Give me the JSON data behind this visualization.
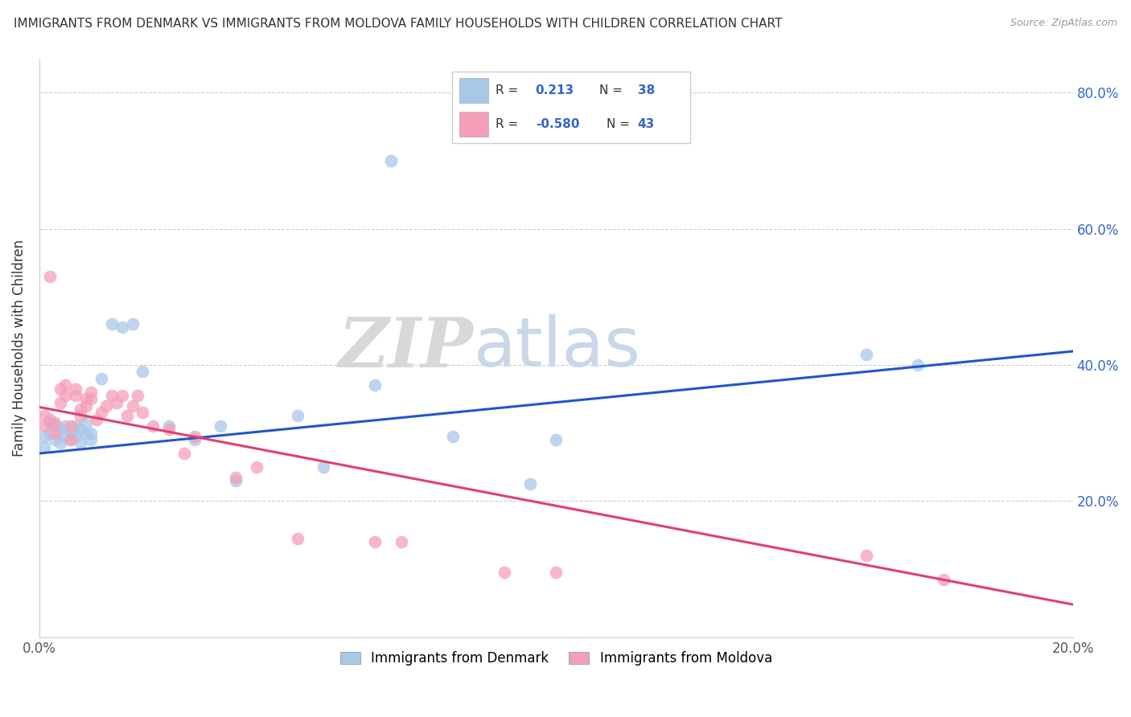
{
  "title": "IMMIGRANTS FROM DENMARK VS IMMIGRANTS FROM MOLDOVA FAMILY HOUSEHOLDS WITH CHILDREN CORRELATION CHART",
  "source": "Source: ZipAtlas.com",
  "ylabel": "Family Households with Children",
  "xlim": [
    0.0,
    0.2
  ],
  "ylim": [
    0.0,
    0.85
  ],
  "legend1_R": "0.213",
  "legend1_N": "38",
  "legend2_R": "-0.580",
  "legend2_N": "43",
  "denmark_color": "#a8c8e8",
  "moldova_color": "#f4a0b8",
  "denmark_line_color": "#2255cc",
  "moldova_line_color": "#e04070",
  "denmark_scatter_x": [
    0.001,
    0.001,
    0.002,
    0.002,
    0.003,
    0.003,
    0.004,
    0.004,
    0.005,
    0.005,
    0.006,
    0.006,
    0.007,
    0.007,
    0.008,
    0.008,
    0.009,
    0.009,
    0.01,
    0.01,
    0.012,
    0.014,
    0.016,
    0.018,
    0.02,
    0.025,
    0.03,
    0.035,
    0.038,
    0.05,
    0.055,
    0.065,
    0.068,
    0.08,
    0.095,
    0.1,
    0.16,
    0.17
  ],
  "denmark_scatter_y": [
    0.28,
    0.295,
    0.3,
    0.315,
    0.29,
    0.31,
    0.285,
    0.305,
    0.295,
    0.31,
    0.3,
    0.29,
    0.31,
    0.295,
    0.305,
    0.285,
    0.3,
    0.315,
    0.29,
    0.3,
    0.38,
    0.46,
    0.455,
    0.46,
    0.39,
    0.31,
    0.29,
    0.31,
    0.23,
    0.325,
    0.25,
    0.37,
    0.7,
    0.295,
    0.225,
    0.29,
    0.415,
    0.4
  ],
  "moldova_scatter_x": [
    0.001,
    0.001,
    0.002,
    0.002,
    0.003,
    0.003,
    0.004,
    0.004,
    0.005,
    0.005,
    0.006,
    0.006,
    0.007,
    0.007,
    0.008,
    0.008,
    0.009,
    0.009,
    0.01,
    0.01,
    0.011,
    0.012,
    0.013,
    0.014,
    0.015,
    0.016,
    0.017,
    0.018,
    0.019,
    0.02,
    0.022,
    0.025,
    0.028,
    0.03,
    0.038,
    0.042,
    0.05,
    0.065,
    0.07,
    0.09,
    0.1,
    0.16,
    0.175
  ],
  "moldova_scatter_y": [
    0.31,
    0.325,
    0.53,
    0.32,
    0.3,
    0.315,
    0.345,
    0.365,
    0.355,
    0.37,
    0.31,
    0.29,
    0.355,
    0.365,
    0.335,
    0.325,
    0.35,
    0.34,
    0.36,
    0.35,
    0.32,
    0.33,
    0.34,
    0.355,
    0.345,
    0.355,
    0.325,
    0.34,
    0.355,
    0.33,
    0.31,
    0.305,
    0.27,
    0.295,
    0.235,
    0.25,
    0.145,
    0.14,
    0.14,
    0.095,
    0.095,
    0.12,
    0.085
  ],
  "denmark_trendline_x": [
    0.0,
    0.2
  ],
  "denmark_trendline_y": [
    0.27,
    0.42
  ],
  "moldova_trendline_x": [
    0.0,
    0.2
  ],
  "moldova_trendline_y": [
    0.338,
    0.048
  ],
  "watermark_zip": "ZIP",
  "watermark_atlas": "atlas",
  "bottom_legend_labels": [
    "Immigrants from Denmark",
    "Immigrants from Moldova"
  ]
}
